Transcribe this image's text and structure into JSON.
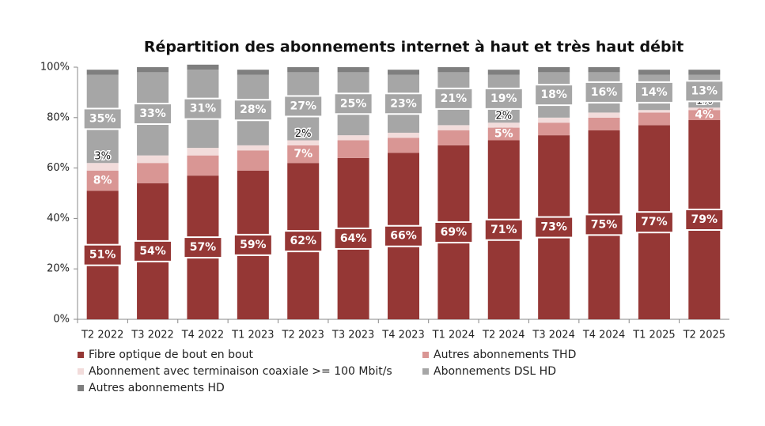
{
  "chart_data": {
    "type": "stacked_bar",
    "title": "Répartition des abonnements internet à haut et très haut débit",
    "categories": [
      "T2 2022",
      "T3 2022",
      "T4 2022",
      "T1 2023",
      "T2 2023",
      "T3 2023",
      "T4 2023",
      "T1 2024",
      "T2 2024",
      "T3 2024",
      "T4 2024",
      "T1 2025",
      "T2 2025"
    ],
    "series": [
      {
        "name": "Fibre optique de bout en bout",
        "color": "#953735",
        "values": [
          51,
          54,
          57,
          59,
          62,
          64,
          66,
          69,
          71,
          73,
          75,
          77,
          79
        ],
        "value_labels": [
          "51%",
          "54%",
          "57%",
          "59%",
          "62%",
          "64%",
          "66%",
          "69%",
          "71%",
          "73%",
          "75%",
          "77%",
          "79%"
        ]
      },
      {
        "name": "Autres abonnements THD",
        "color": "#d99694",
        "values": [
          8,
          8,
          8,
          8,
          7,
          7,
          6,
          6,
          5,
          5,
          5,
          5,
          4
        ],
        "value_labels": [
          "8%",
          null,
          null,
          null,
          "7%",
          null,
          null,
          null,
          "5%",
          null,
          null,
          null,
          "4%"
        ]
      },
      {
        "name": "Abonnement avec terminaison coaxiale >= 100 Mbit/s",
        "color": "#f2dcdb",
        "values": [
          3,
          3,
          3,
          2,
          2,
          2,
          2,
          2,
          2,
          2,
          2,
          1,
          1
        ],
        "value_labels": [
          "3%",
          null,
          null,
          null,
          "2%",
          null,
          null,
          null,
          "2%",
          null,
          null,
          null,
          "1%"
        ]
      },
      {
        "name": "Abonnements DSL HD",
        "color": "#a6a6a6",
        "values": [
          35,
          33,
          31,
          28,
          27,
          25,
          23,
          21,
          19,
          18,
          16,
          14,
          13
        ],
        "value_labels": [
          "35%",
          "33%",
          "31%",
          "28%",
          "27%",
          "25%",
          "23%",
          "21%",
          "19%",
          "18%",
          "16%",
          "14%",
          "13%"
        ]
      },
      {
        "name": "Autres abonnements HD",
        "color": "#7f7f7f",
        "values": [
          2,
          2,
          2,
          2,
          2,
          2,
          2,
          2,
          2,
          2,
          2,
          2,
          2
        ]
      }
    ],
    "ylim": [
      0,
      100
    ],
    "yticks": [
      {
        "value": 0,
        "label": "0%"
      },
      {
        "value": 20,
        "label": "20%"
      },
      {
        "value": 40,
        "label": "40%"
      },
      {
        "value": 60,
        "label": "60%"
      },
      {
        "value": 80,
        "label": "80%"
      },
      {
        "value": 100,
        "label": "100%"
      }
    ],
    "grid": false
  }
}
